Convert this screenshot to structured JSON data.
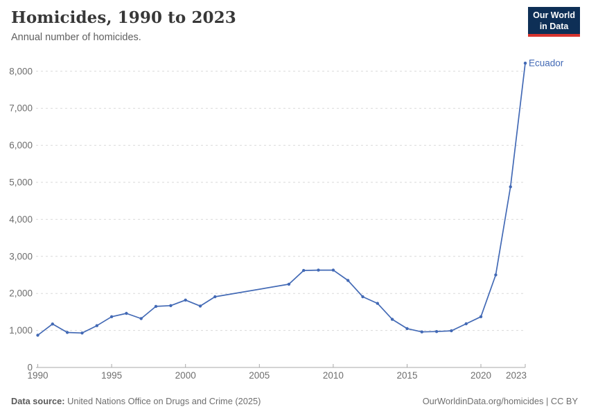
{
  "header": {
    "title": "Homicides, 1990 to 2023",
    "subtitle": "Annual number of homicides.",
    "logo": {
      "line1": "Our World",
      "line2": "in Data"
    }
  },
  "footer": {
    "source_label": "Data source:",
    "source_text": " United Nations Office on Drugs and Crime (2025)",
    "credit": "OurWorldinData.org/homicides | CC BY"
  },
  "colors": {
    "series_blue": "#4269b5",
    "gridline": "#d9d9d9",
    "axis": "#a8a8a8",
    "tick_text": "#6e6e6e",
    "logo_navy": "#0e2f56",
    "logo_red": "#d7342e"
  },
  "chart_data": {
    "type": "line",
    "title": "Homicides, 1990 to 2023",
    "subtitle": "Annual number of homicides.",
    "xlabel": "",
    "ylabel": "",
    "xlim": [
      1990,
      2023
    ],
    "ylim": [
      0,
      8000
    ],
    "x_ticks": [
      1990,
      1995,
      2000,
      2005,
      2010,
      2015,
      2020,
      2023
    ],
    "y_ticks": [
      0,
      1000,
      2000,
      3000,
      4000,
      5000,
      6000,
      7000,
      8000
    ],
    "grid": "horizontal-dashed",
    "legend_position": "end-of-line-label",
    "data_gap_years": [
      2003,
      2004,
      2005,
      2006
    ],
    "series": [
      {
        "name": "Ecuador",
        "color": "#4269b5",
        "points": [
          [
            1990,
            870
          ],
          [
            1991,
            1175
          ],
          [
            1992,
            945
          ],
          [
            1993,
            930
          ],
          [
            1994,
            1130
          ],
          [
            1995,
            1370
          ],
          [
            1996,
            1460
          ],
          [
            1997,
            1320
          ],
          [
            1998,
            1650
          ],
          [
            1999,
            1670
          ],
          [
            2000,
            1820
          ],
          [
            2001,
            1660
          ],
          [
            2002,
            1910
          ],
          [
            2007,
            2250
          ],
          [
            2008,
            2620
          ],
          [
            2009,
            2630
          ],
          [
            2010,
            2630
          ],
          [
            2011,
            2350
          ],
          [
            2012,
            1910
          ],
          [
            2013,
            1730
          ],
          [
            2014,
            1300
          ],
          [
            2015,
            1050
          ],
          [
            2016,
            960
          ],
          [
            2017,
            970
          ],
          [
            2018,
            990
          ],
          [
            2019,
            1180
          ],
          [
            2020,
            1370
          ],
          [
            2021,
            2500
          ],
          [
            2022,
            4880
          ],
          [
            2023,
            8220
          ]
        ]
      }
    ]
  }
}
